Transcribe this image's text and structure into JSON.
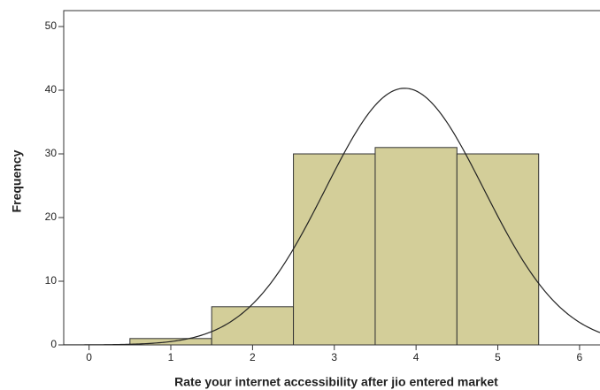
{
  "chart_data": {
    "type": "histogram",
    "bins": [
      0.5,
      1.5,
      2.5,
      3.5,
      4.5,
      5.5
    ],
    "values": [
      1,
      6,
      30,
      31,
      30
    ],
    "color": "#d3ce99",
    "x_label": "Rate your  internet accessibility after jio entered market",
    "y_label": "Frequency",
    "xlim": [
      -0.31,
      6.25
    ],
    "xticks": [
      0,
      1,
      2,
      3,
      4,
      5,
      6
    ],
    "ylim": [
      0,
      52.5
    ],
    "yticks": [
      0,
      10,
      20,
      30,
      40,
      50
    ],
    "curve": {
      "mean": 3.86,
      "sd": 0.97
    }
  }
}
